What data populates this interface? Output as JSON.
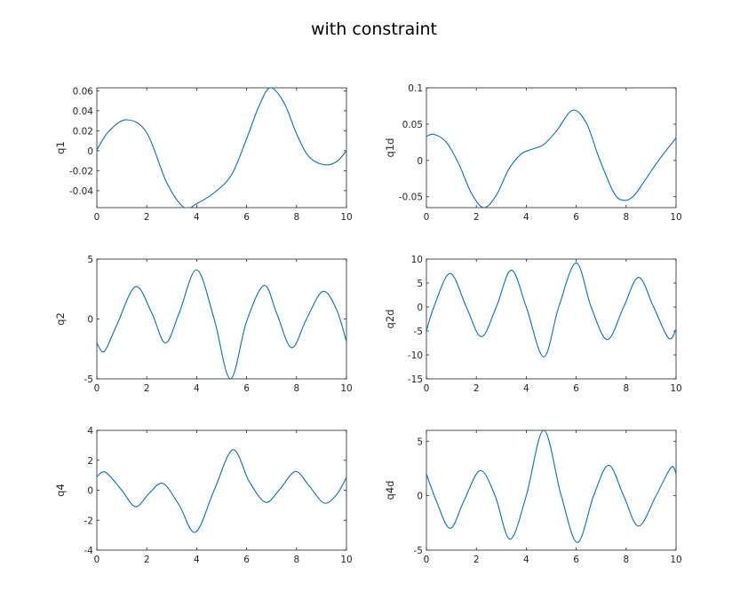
{
  "figure": {
    "title": "with constraint",
    "line_color": "#0072BD",
    "axes_color": "#262626"
  },
  "chart_data": [
    {
      "type": "line",
      "ylabel": "q1",
      "xlabel": "",
      "xlim": [
        0,
        10
      ],
      "ylim": [
        -0.057,
        0.063
      ],
      "xticks": [
        "0",
        "2",
        "4",
        "6",
        "8",
        "10"
      ],
      "xtick_values": [
        0,
        2,
        4,
        6,
        8,
        10
      ],
      "yticks": [
        "0.06",
        "0.04",
        "0.02",
        "0",
        "-0.02",
        "-0.04"
      ],
      "ytick_values": [
        0.06,
        0.04,
        0.02,
        0,
        -0.02,
        -0.04
      ],
      "grid": false,
      "series": [
        {
          "x": [
            0,
            0.5,
            1.2,
            2,
            2.8,
            3.5,
            4,
            4.7,
            5.4,
            6,
            6.5,
            6.95,
            7.5,
            8,
            8.5,
            9.1,
            9.6,
            10
          ],
          "y": [
            0.001,
            0.02,
            0.031,
            0.018,
            -0.032,
            -0.057,
            -0.053,
            -0.042,
            -0.024,
            0.012,
            0.045,
            0.063,
            0.048,
            0.017,
            -0.006,
            -0.014,
            -0.011,
            0.0
          ]
        }
      ]
    },
    {
      "type": "line",
      "ylabel": "q1d",
      "xlabel": "",
      "xlim": [
        0,
        10
      ],
      "ylim": [
        -0.065,
        0.1
      ],
      "xticks": [
        "0",
        "2",
        "4",
        "6",
        "8",
        "10"
      ],
      "xtick_values": [
        0,
        2,
        4,
        6,
        8,
        10
      ],
      "yticks": [
        "0.1",
        "0.05",
        "0",
        "-0.05"
      ],
      "ytick_values": [
        0.1,
        0.05,
        0,
        -0.05
      ],
      "grid": false,
      "series": [
        {
          "x": [
            0,
            0.3,
            0.8,
            1.3,
            1.8,
            2.3,
            2.8,
            3.3,
            3.8,
            4.2,
            4.7,
            5.2,
            5.85,
            6.4,
            6.9,
            7.5,
            7.9,
            8.3,
            8.8,
            9.3,
            10
          ],
          "y": [
            0.033,
            0.036,
            0.025,
            -0.005,
            -0.045,
            -0.065,
            -0.048,
            -0.012,
            0.009,
            0.015,
            0.022,
            0.04,
            0.069,
            0.052,
            0.005,
            -0.044,
            -0.055,
            -0.049,
            -0.025,
            0.0,
            0.031
          ]
        }
      ]
    },
    {
      "type": "line",
      "ylabel": "q2",
      "xlabel": "",
      "xlim": [
        0,
        10
      ],
      "ylim": [
        -5,
        5
      ],
      "xticks": [
        "0",
        "2",
        "4",
        "6",
        "8",
        "10"
      ],
      "xtick_values": [
        0,
        2,
        4,
        6,
        8,
        10
      ],
      "yticks": [
        "5",
        "0",
        "-5"
      ],
      "ytick_values": [
        5,
        0,
        -5
      ],
      "grid": false,
      "series": [
        {
          "x": [
            0,
            0.3,
            0.8,
            1.55,
            2.2,
            2.75,
            3.3,
            4.0,
            4.7,
            5.35,
            6.0,
            6.7,
            7.2,
            7.8,
            8.4,
            9.05,
            9.6,
            10
          ],
          "y": [
            -2.0,
            -2.7,
            -0.5,
            2.7,
            0.5,
            -2.0,
            0.5,
            4.1,
            0.0,
            -5.0,
            -0.2,
            2.8,
            0.5,
            -2.4,
            0.0,
            2.3,
            0.8,
            -1.9
          ]
        }
      ]
    },
    {
      "type": "line",
      "ylabel": "q2d",
      "xlabel": "",
      "xlim": [
        0,
        10
      ],
      "ylim": [
        -15,
        10
      ],
      "xticks": [
        "0",
        "2",
        "4",
        "6",
        "8",
        "10"
      ],
      "xtick_values": [
        0,
        2,
        4,
        6,
        8,
        10
      ],
      "yticks": [
        "10",
        "5",
        "0",
        "-5",
        "-10",
        "-15"
      ],
      "ytick_values": [
        10,
        5,
        0,
        -5,
        -10,
        -15
      ],
      "grid": false,
      "series": [
        {
          "x": [
            0,
            0.3,
            0.95,
            1.6,
            2.2,
            2.8,
            3.4,
            4.0,
            4.7,
            5.3,
            6.0,
            6.6,
            7.25,
            7.9,
            8.5,
            9.1,
            9.7,
            10
          ],
          "y": [
            -5.0,
            0.0,
            7.0,
            0.0,
            -6.2,
            0.0,
            7.7,
            0.0,
            -10.4,
            0.0,
            9.2,
            0.0,
            -6.8,
            0.0,
            6.2,
            0.0,
            -6.5,
            -4.7
          ]
        }
      ]
    },
    {
      "type": "line",
      "ylabel": "q4",
      "xlabel": "",
      "xlim": [
        0,
        10
      ],
      "ylim": [
        -4,
        4
      ],
      "xticks": [
        "0",
        "2",
        "4",
        "6",
        "8",
        "10"
      ],
      "xtick_values": [
        0,
        2,
        4,
        6,
        8,
        10
      ],
      "yticks": [
        "4",
        "2",
        "0",
        "-2",
        "-4"
      ],
      "ytick_values": [
        4,
        2,
        0,
        -2,
        -4
      ],
      "grid": false,
      "series": [
        {
          "x": [
            0,
            0.35,
            1.0,
            1.55,
            2.1,
            2.65,
            3.3,
            3.95,
            4.7,
            5.45,
            6.1,
            6.75,
            7.3,
            7.95,
            8.5,
            9.1,
            9.6,
            10
          ],
          "y": [
            0.9,
            1.2,
            0.0,
            -1.1,
            -0.2,
            0.45,
            -1.0,
            -2.8,
            0.0,
            2.7,
            0.6,
            -0.8,
            0.0,
            1.25,
            0.3,
            -0.85,
            -0.3,
            0.85
          ]
        }
      ]
    },
    {
      "type": "line",
      "ylabel": "q4d",
      "xlabel": "",
      "xlim": [
        0,
        10
      ],
      "ylim": [
        -5,
        6
      ],
      "xticks": [
        "0",
        "2",
        "4",
        "6",
        "8",
        "10"
      ],
      "xtick_values": [
        0,
        2,
        4,
        6,
        8,
        10
      ],
      "yticks": [
        "5",
        "0",
        "-5"
      ],
      "ytick_values": [
        5,
        0,
        -5
      ],
      "grid": false,
      "series": [
        {
          "x": [
            0,
            0.4,
            0.95,
            1.5,
            2.15,
            2.75,
            3.35,
            4.0,
            4.7,
            5.4,
            6.05,
            6.7,
            7.3,
            7.9,
            8.5,
            9.2,
            9.8,
            10
          ],
          "y": [
            2.0,
            -0.5,
            -3.0,
            -0.5,
            2.3,
            0.0,
            -4.0,
            0.0,
            6.0,
            0.0,
            -4.3,
            0.0,
            2.8,
            0.0,
            -2.8,
            0.0,
            2.6,
            2.0
          ]
        }
      ]
    }
  ]
}
